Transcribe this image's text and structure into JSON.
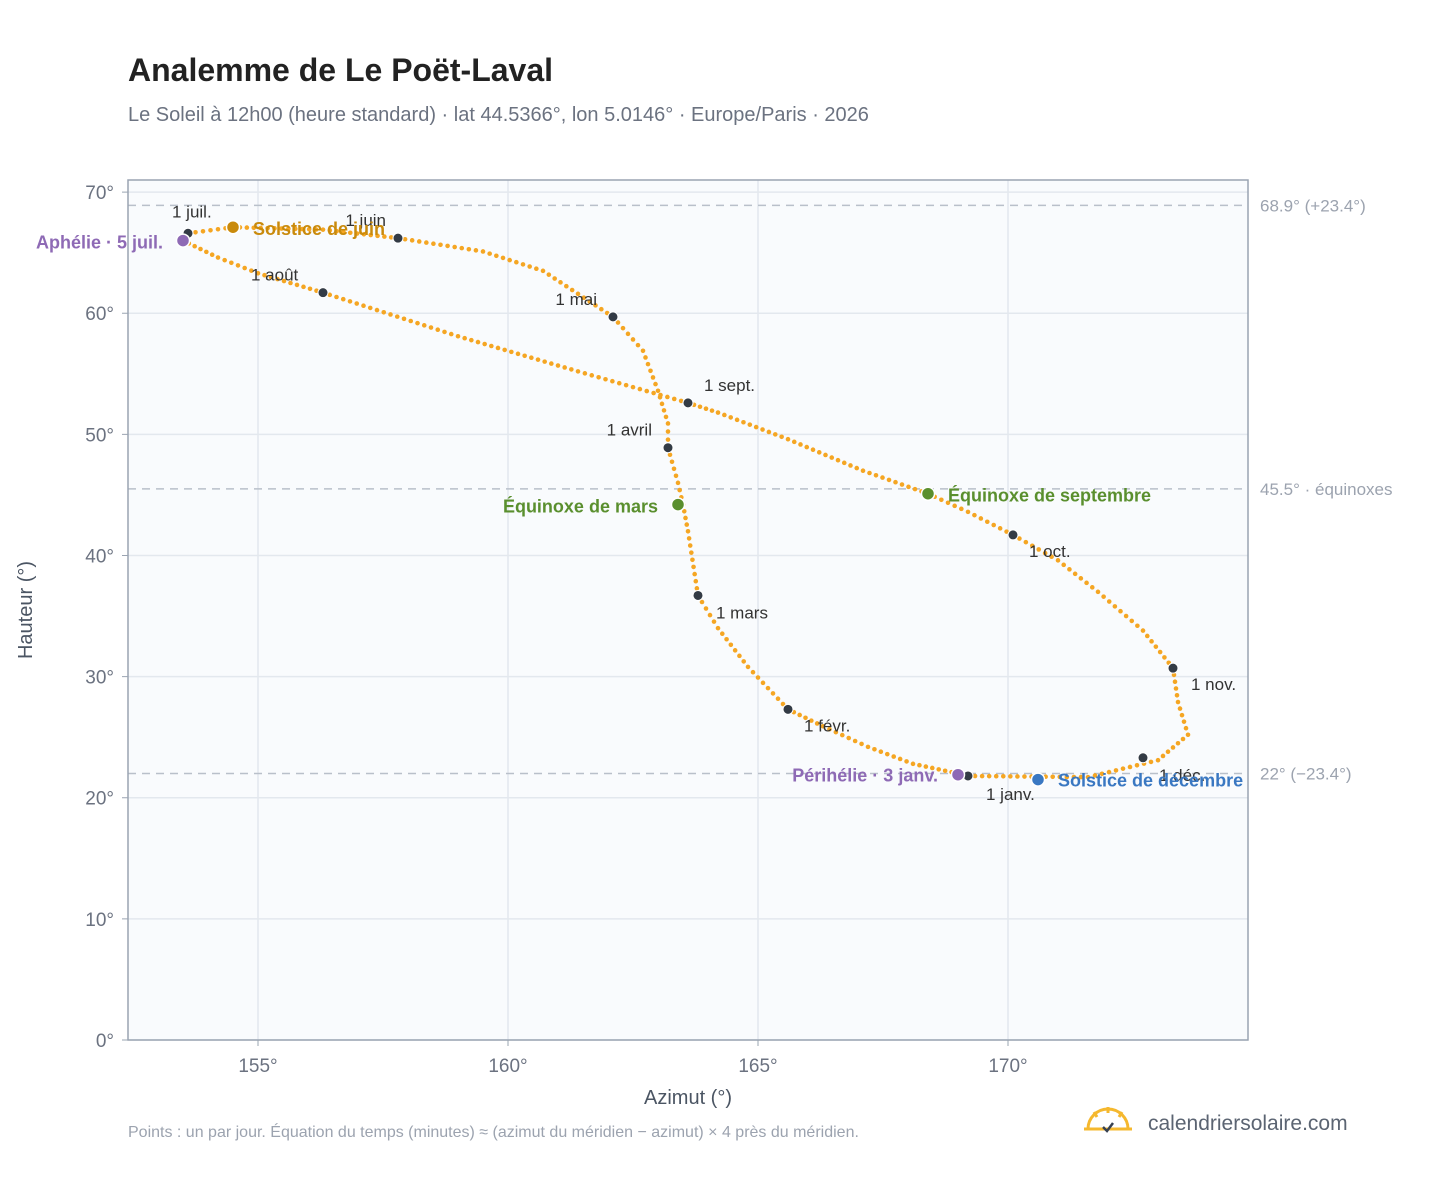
{
  "header": {
    "title": "Analemme de Le Poët-Laval",
    "subtitle": "Le Soleil à 12h00 (heure standard) · lat 44.5366°, lon 5.0146° · Europe/Paris · 2026"
  },
  "footer": {
    "note": "Points : un par jour. Équation du temps (minutes) ≈ (azimut du méridien − azimut) × 4 près du méridien.",
    "brand": "calendriersolaire.com"
  },
  "chart_data": {
    "type": "scatter",
    "xlabel": "Azimut (°)",
    "ylabel": "Hauteur (°)",
    "xlim": [
      152.4,
      174.8
    ],
    "ylim": [
      0,
      71
    ],
    "x_ticks": [
      {
        "value": 155,
        "label": "155°"
      },
      {
        "value": 160,
        "label": "160°"
      },
      {
        "value": 165,
        "label": "165°"
      },
      {
        "value": 170,
        "label": "170°"
      }
    ],
    "y_ticks": [
      {
        "value": 0,
        "label": "0°"
      },
      {
        "value": 10,
        "label": "10°"
      },
      {
        "value": 20,
        "label": "20°"
      },
      {
        "value": 30,
        "label": "30°"
      },
      {
        "value": 40,
        "label": "40°"
      },
      {
        "value": 50,
        "label": "50°"
      },
      {
        "value": 60,
        "label": "60°"
      },
      {
        "value": 70,
        "label": "70°"
      }
    ],
    "grid": true,
    "reference_lines": [
      {
        "y": 68.9,
        "label": "68.9° (+23.4°)"
      },
      {
        "y": 45.5,
        "label": "45.5° · équinoxes"
      },
      {
        "y": 22.0,
        "label": "22° (−23.4°)"
      }
    ],
    "series": [
      {
        "color": "#f5a623",
        "points": [
          [
            169.2,
            21.8
          ],
          [
            171.6,
            21.7
          ],
          [
            173.0,
            23.1
          ],
          [
            173.6,
            25.2
          ],
          [
            173.4,
            27.9
          ],
          [
            173.3,
            30.7
          ],
          [
            172.7,
            33.8
          ],
          [
            171.8,
            37.0
          ],
          [
            171.0,
            39.6
          ],
          [
            170.1,
            41.7
          ],
          [
            169.2,
            43.6
          ],
          [
            168.4,
            45.1
          ],
          [
            167.1,
            47.0
          ],
          [
            165.6,
            49.6
          ],
          [
            164.2,
            51.8
          ],
          [
            163.6,
            52.6
          ],
          [
            161.4,
            55.2
          ],
          [
            159.0,
            58.1
          ],
          [
            156.3,
            61.7
          ],
          [
            155.0,
            63.3
          ],
          [
            154.2,
            64.6
          ],
          [
            153.5,
            66.0
          ],
          [
            153.6,
            66.6
          ],
          [
            154.5,
            67.1
          ],
          [
            156.3,
            66.9
          ],
          [
            157.8,
            66.2
          ],
          [
            159.5,
            65.1
          ],
          [
            160.7,
            63.5
          ],
          [
            162.1,
            59.7
          ],
          [
            162.7,
            56.9
          ],
          [
            163.0,
            53.6
          ],
          [
            163.2,
            50.9
          ],
          [
            163.2,
            48.9
          ],
          [
            163.4,
            46.0
          ],
          [
            163.5,
            44.2
          ],
          [
            163.6,
            42.0
          ],
          [
            163.8,
            36.7
          ],
          [
            164.2,
            34.0
          ],
          [
            164.8,
            30.8
          ],
          [
            165.6,
            27.3
          ],
          [
            166.3,
            25.9
          ],
          [
            167.2,
            24.2
          ],
          [
            168.1,
            22.8
          ],
          [
            169.0,
            22.0
          ],
          [
            169.2,
            21.8
          ]
        ]
      }
    ],
    "month_markers": [
      {
        "label": "1 janv.",
        "x": 169.2,
        "y": 21.8
      },
      {
        "label": "1 févr.",
        "x": 165.6,
        "y": 27.3
      },
      {
        "label": "1 mars",
        "x": 163.8,
        "y": 36.7
      },
      {
        "label": "1 avril",
        "x": 163.2,
        "y": 48.9
      },
      {
        "label": "1 mai",
        "x": 162.1,
        "y": 59.7
      },
      {
        "label": "1 juin",
        "x": 157.8,
        "y": 66.2
      },
      {
        "label": "1 juil.",
        "x": 153.6,
        "y": 66.6
      },
      {
        "label": "1 août",
        "x": 156.3,
        "y": 61.7
      },
      {
        "label": "1 sept.",
        "x": 163.6,
        "y": 52.6
      },
      {
        "label": "1 oct.",
        "x": 170.1,
        "y": 41.7
      },
      {
        "label": "1 nov.",
        "x": 173.3,
        "y": 30.7
      },
      {
        "label": "1 déc.",
        "x": 172.7,
        "y": 23.3
      }
    ],
    "events": [
      {
        "label": "Solstice de juin",
        "x": 154.5,
        "y": 67.1,
        "color": "#c98a0c"
      },
      {
        "label": "Aphélie · 5 juil.",
        "x": 153.5,
        "y": 66.0,
        "color": "#8e6ab5"
      },
      {
        "label": "Équinoxe de mars",
        "x": 163.4,
        "y": 44.2,
        "color": "#5a8f2e"
      },
      {
        "label": "Équinoxe de septembre",
        "x": 168.4,
        "y": 45.1,
        "color": "#5a8f2e"
      },
      {
        "label": "Périhélie · 3 janv.",
        "x": 169.0,
        "y": 21.9,
        "color": "#8e6ab5"
      },
      {
        "label": "Solstice de décembre",
        "x": 170.6,
        "y": 21.5,
        "color": "#3a78c2"
      }
    ]
  }
}
